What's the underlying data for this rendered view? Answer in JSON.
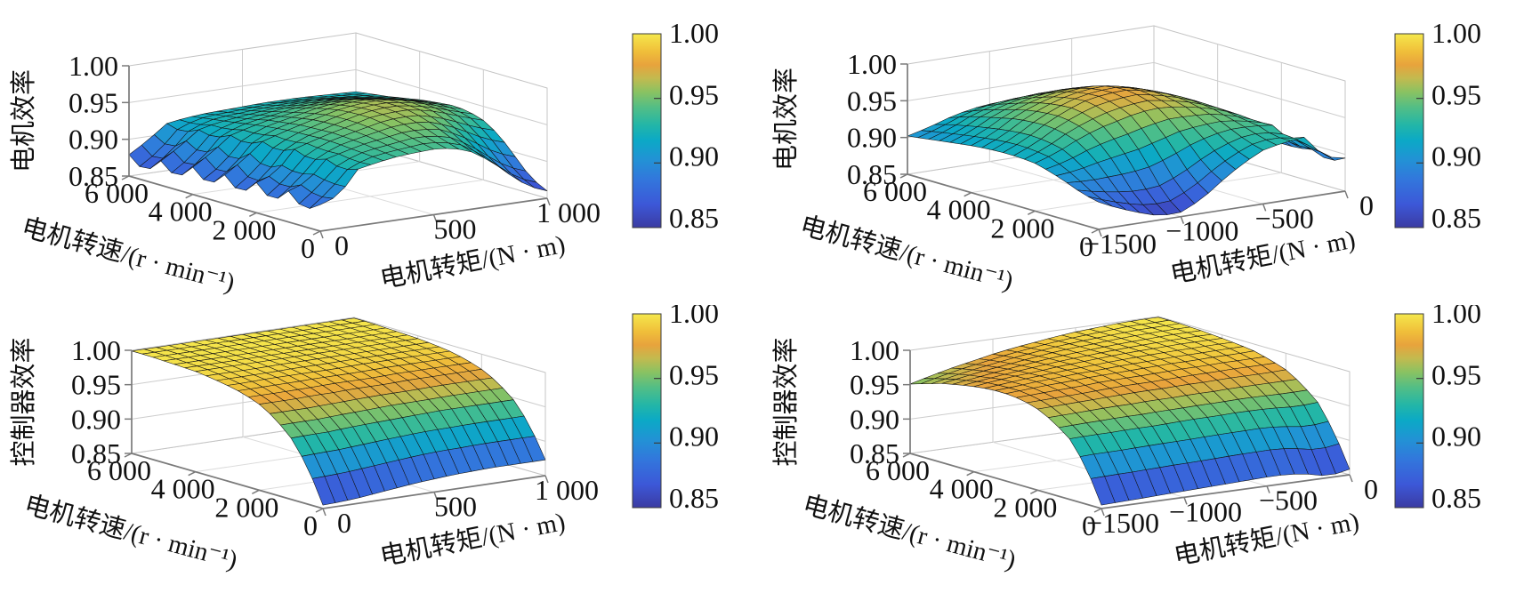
{
  "figure": {
    "background": "#ffffff",
    "description": "Four 3D surface plots: motor efficiency and controller efficiency versus motor speed and motor torque (drive and regeneration quadrants)"
  },
  "colormap": {
    "name": "parula-like",
    "stops": [
      [
        0.0,
        "#3b3ba2"
      ],
      [
        0.12,
        "#3c58d8"
      ],
      [
        0.25,
        "#3277dc"
      ],
      [
        0.35,
        "#2292d5"
      ],
      [
        0.45,
        "#0ba9c6"
      ],
      [
        0.53,
        "#23b6a7"
      ],
      [
        0.62,
        "#52be86"
      ],
      [
        0.7,
        "#8ac262"
      ],
      [
        0.77,
        "#c2ba4f"
      ],
      [
        0.84,
        "#e8a33c"
      ],
      [
        0.91,
        "#f0bf3a"
      ],
      [
        1.0,
        "#f5e84c"
      ]
    ]
  },
  "colorbar": {
    "tick_labels": [
      "1.00",
      "0.95",
      "0.90",
      "0.85"
    ],
    "range": [
      0.85,
      1.0
    ]
  },
  "chart_data": [
    {
      "type": "surface",
      "panel": "top-left",
      "zlabel": "电机效率",
      "ylabel": "电机转速/(r · min⁻¹)",
      "xlabel": "电机转矩/(N · m)",
      "xtick_labels": [
        "0",
        "500",
        "1 000"
      ],
      "ytick_labels": [
        "0",
        "2 000",
        "4 000",
        "6 000"
      ],
      "ztick_labels": [
        "0.85",
        "0.90",
        "0.95",
        "1.00"
      ],
      "colorbar_tick_labels": [
        "1.00",
        "0.95",
        "0.90",
        "0.85"
      ],
      "x_torque": [
        0,
        83,
        167,
        250,
        333,
        417,
        500,
        583,
        667,
        750,
        833,
        917,
        1000
      ],
      "y_speed": [
        0,
        500,
        1000,
        1500,
        2000,
        2500,
        3000,
        3500,
        4000,
        4500,
        5000,
        5500,
        6000
      ],
      "zlim": [
        0.85,
        1.0
      ],
      "z_grid": [
        [
          0.886,
          0.895,
          0.927,
          0.932,
          0.936,
          0.938,
          0.939,
          0.937,
          0.928,
          0.912,
          0.89,
          0.87,
          0.86
        ],
        [
          0.872,
          0.897,
          0.92,
          0.934,
          0.938,
          0.941,
          0.944,
          0.943,
          0.936,
          0.921,
          0.9,
          0.881,
          0.871
        ],
        [
          0.892,
          0.901,
          0.928,
          0.935,
          0.941,
          0.945,
          0.949,
          0.95,
          0.946,
          0.935,
          0.919,
          0.903,
          0.894
        ],
        [
          0.871,
          0.896,
          0.921,
          0.937,
          0.943,
          0.949,
          0.954,
          0.957,
          0.955,
          0.948,
          0.937,
          0.925,
          0.917
        ],
        [
          0.891,
          0.9,
          0.929,
          0.937,
          0.944,
          0.95,
          0.957,
          0.96,
          0.96,
          0.956,
          0.948,
          0.939,
          0.931
        ],
        [
          0.869,
          0.889,
          0.92,
          0.936,
          0.943,
          0.951,
          0.957,
          0.962,
          0.962,
          0.959,
          0.953,
          0.945,
          0.938
        ],
        [
          0.889,
          0.906,
          0.927,
          0.935,
          0.942,
          0.949,
          0.955,
          0.959,
          0.96,
          0.958,
          0.952,
          0.945,
          0.939
        ],
        [
          0.868,
          0.886,
          0.917,
          0.933,
          0.939,
          0.945,
          0.951,
          0.955,
          0.956,
          0.953,
          0.949,
          0.943,
          0.937
        ],
        [
          0.887,
          0.903,
          0.923,
          0.93,
          0.936,
          0.94,
          0.945,
          0.948,
          0.949,
          0.947,
          0.943,
          0.938,
          0.934
        ],
        [
          0.865,
          0.883,
          0.913,
          0.927,
          0.931,
          0.935,
          0.939,
          0.941,
          0.942,
          0.94,
          0.937,
          0.934,
          0.93
        ],
        [
          0.883,
          0.899,
          0.918,
          0.924,
          0.927,
          0.93,
          0.932,
          0.934,
          0.935,
          0.934,
          0.932,
          0.929,
          0.926
        ],
        [
          0.861,
          0.879,
          0.908,
          0.921,
          0.924,
          0.925,
          0.927,
          0.928,
          0.928,
          0.928,
          0.926,
          0.925,
          0.923
        ],
        [
          0.879,
          0.895,
          0.914,
          0.918,
          0.92,
          0.921,
          0.922,
          0.923,
          0.923,
          0.923,
          0.922,
          0.921,
          0.92
        ]
      ]
    },
    {
      "type": "surface",
      "panel": "top-right",
      "zlabel": "电机效率",
      "ylabel": "电机转速/(r · min⁻¹)",
      "xlabel": "电机转矩/(N · m)",
      "xtick_labels": [
        "−1500",
        "−1000",
        "−500",
        "0"
      ],
      "ytick_labels": [
        "0",
        "2 000",
        "4 000",
        "6 000"
      ],
      "ztick_labels": [
        "0.85",
        "0.90",
        "0.95",
        "1.00"
      ],
      "colorbar_tick_labels": [
        "1.00",
        "0.95",
        "0.90",
        "0.85"
      ],
      "x_torque": [
        -1500,
        -1375,
        -1250,
        -1125,
        -1000,
        -875,
        -750,
        -625,
        -500,
        -375,
        -250,
        -125,
        0
      ],
      "y_speed": [
        0,
        500,
        1000,
        1500,
        2000,
        2500,
        3000,
        3500,
        4000,
        4500,
        5000,
        5500,
        6000
      ],
      "zlim": [
        0.85,
        1.0
      ],
      "z_grid": [
        [
          0.887,
          0.874,
          0.864,
          0.855,
          0.856,
          0.869,
          0.89,
          0.909,
          0.923,
          0.929,
          0.932,
          0.901,
          0.895
        ],
        [
          0.892,
          0.883,
          0.876,
          0.871,
          0.873,
          0.885,
          0.903,
          0.919,
          0.929,
          0.933,
          0.924,
          0.913,
          0.884
        ],
        [
          0.901,
          0.899,
          0.9,
          0.901,
          0.905,
          0.914,
          0.926,
          0.935,
          0.939,
          0.939,
          0.936,
          0.906,
          0.894
        ],
        [
          0.909,
          0.914,
          0.923,
          0.93,
          0.935,
          0.942,
          0.948,
          0.949,
          0.949,
          0.944,
          0.935,
          0.911,
          0.89
        ],
        [
          0.915,
          0.924,
          0.937,
          0.948,
          0.955,
          0.962,
          0.964,
          0.962,
          0.956,
          0.949,
          0.937,
          0.912,
          0.89
        ],
        [
          0.917,
          0.928,
          0.944,
          0.957,
          0.966,
          0.971,
          0.973,
          0.968,
          0.961,
          0.951,
          0.938,
          0.912,
          0.89
        ],
        [
          0.917,
          0.929,
          0.946,
          0.96,
          0.97,
          0.975,
          0.976,
          0.971,
          0.962,
          0.952,
          0.938,
          0.912,
          0.889
        ],
        [
          0.916,
          0.928,
          0.945,
          0.959,
          0.968,
          0.974,
          0.975,
          0.97,
          0.961,
          0.951,
          0.937,
          0.91,
          0.888
        ],
        [
          0.914,
          0.925,
          0.942,
          0.955,
          0.963,
          0.969,
          0.969,
          0.965,
          0.957,
          0.948,
          0.934,
          0.908,
          0.887
        ],
        [
          0.911,
          0.922,
          0.937,
          0.949,
          0.956,
          0.961,
          0.961,
          0.958,
          0.951,
          0.943,
          0.931,
          0.906,
          0.884
        ],
        [
          0.908,
          0.918,
          0.932,
          0.942,
          0.948,
          0.951,
          0.952,
          0.949,
          0.943,
          0.937,
          0.926,
          0.902,
          0.882
        ],
        [
          0.905,
          0.914,
          0.926,
          0.935,
          0.939,
          0.942,
          0.942,
          0.94,
          0.936,
          0.931,
          0.922,
          0.899,
          0.879
        ],
        [
          0.902,
          0.909,
          0.918,
          0.925,
          0.928,
          0.929,
          0.93,
          0.928,
          0.925,
          0.922,
          0.917,
          0.896,
          0.877
        ]
      ]
    },
    {
      "type": "surface",
      "panel": "bottom-left",
      "zlabel": "控制器效率",
      "ylabel": "电机转速/(r · min⁻¹)",
      "xlabel": "电机转矩/(N · m)",
      "xtick_labels": [
        "0",
        "500",
        "1 000"
      ],
      "ytick_labels": [
        "0",
        "2 000",
        "4 000",
        "6 000"
      ],
      "ztick_labels": [
        "0.85",
        "0.90",
        "0.95",
        "1.00"
      ],
      "colorbar_tick_labels": [
        "1.00",
        "0.95",
        "0.90",
        "0.85"
      ],
      "x_torque": [
        0,
        83,
        167,
        250,
        333,
        417,
        500,
        583,
        667,
        750,
        833,
        917,
        1000
      ],
      "y_speed": [
        0,
        500,
        1000,
        1500,
        2000,
        2500,
        3000,
        3500,
        4000,
        4500,
        5000,
        5500,
        6000
      ],
      "zlim": [
        0.85,
        1.0
      ],
      "z_grid": [
        [
          0.855,
          0.856,
          0.858,
          0.861,
          0.864,
          0.867,
          0.869,
          0.871,
          0.872,
          0.873,
          0.873,
          0.873,
          0.873
        ],
        [
          0.906,
          0.907,
          0.908,
          0.91,
          0.912,
          0.914,
          0.916,
          0.917,
          0.917,
          0.918,
          0.918,
          0.918,
          0.918
        ],
        [
          0.939,
          0.94,
          0.94,
          0.942,
          0.943,
          0.944,
          0.945,
          0.946,
          0.947,
          0.947,
          0.947,
          0.947,
          0.947
        ],
        [
          0.961,
          0.961,
          0.961,
          0.962,
          0.963,
          0.964,
          0.965,
          0.965,
          0.965,
          0.966,
          0.966,
          0.966,
          0.966
        ],
        [
          0.975,
          0.975,
          0.975,
          0.976,
          0.976,
          0.977,
          0.977,
          0.977,
          0.978,
          0.978,
          0.978,
          0.978,
          0.978
        ],
        [
          0.984,
          0.984,
          0.984,
          0.984,
          0.985,
          0.985,
          0.985,
          0.985,
          0.986,
          0.986,
          0.986,
          0.986,
          0.986
        ],
        [
          0.989,
          0.989,
          0.99,
          0.99,
          0.99,
          0.99,
          0.99,
          0.991,
          0.991,
          0.991,
          0.991,
          0.991,
          0.991
        ],
        [
          0.993,
          0.993,
          0.993,
          0.993,
          0.994,
          0.994,
          0.994,
          0.994,
          0.994,
          0.994,
          0.994,
          0.994,
          0.994
        ],
        [
          0.996,
          0.996,
          0.996,
          0.996,
          0.996,
          0.996,
          0.996,
          0.996,
          0.996,
          0.996,
          0.996,
          0.996,
          0.996
        ],
        [
          0.997,
          0.997,
          0.997,
          0.997,
          0.997,
          0.997,
          0.997,
          0.997,
          0.997,
          0.997,
          0.997,
          0.997,
          0.997
        ],
        [
          0.998,
          0.998,
          0.998,
          0.998,
          0.998,
          0.998,
          0.998,
          0.998,
          0.998,
          0.998,
          0.998,
          0.998,
          0.998
        ],
        [
          0.999,
          0.999,
          0.999,
          0.999,
          0.999,
          0.999,
          0.999,
          0.999,
          0.999,
          0.999,
          0.999,
          0.999,
          0.999
        ],
        [
          0.999,
          0.999,
          0.999,
          0.999,
          0.999,
          0.999,
          0.999,
          0.999,
          0.999,
          0.999,
          0.999,
          0.999,
          0.999
        ]
      ]
    },
    {
      "type": "surface",
      "panel": "bottom-right",
      "zlabel": "控制器效率",
      "ylabel": "电机转速/(r · min⁻¹)",
      "xlabel": "电机转矩/(N · m)",
      "xtick_labels": [
        "−1500",
        "−1000",
        "−500",
        "0"
      ],
      "ytick_labels": [
        "0",
        "2 000",
        "4 000",
        "6 000"
      ],
      "ztick_labels": [
        "0.85",
        "0.90",
        "0.95",
        "1.00"
      ],
      "colorbar_tick_labels": [
        "1.00",
        "0.95",
        "0.90",
        "0.85"
      ],
      "x_torque": [
        -1500,
        -1375,
        -1250,
        -1125,
        -1000,
        -875,
        -750,
        -625,
        -500,
        -375,
        -250,
        -125,
        0
      ],
      "y_speed": [
        0,
        500,
        1000,
        1500,
        2000,
        2500,
        3000,
        3500,
        4000,
        4500,
        5000,
        5500,
        6000
      ],
      "zlim": [
        0.85,
        1.0
      ],
      "z_grid": [
        [
          0.855,
          0.856,
          0.857,
          0.858,
          0.859,
          0.86,
          0.861,
          0.862,
          0.863,
          0.863,
          0.859,
          0.852,
          0.858
        ],
        [
          0.906,
          0.907,
          0.907,
          0.908,
          0.909,
          0.909,
          0.91,
          0.911,
          0.911,
          0.912,
          0.908,
          0.903,
          0.907
        ],
        [
          0.938,
          0.939,
          0.939,
          0.94,
          0.94,
          0.941,
          0.942,
          0.942,
          0.943,
          0.943,
          0.942,
          0.94,
          0.942
        ],
        [
          0.956,
          0.957,
          0.958,
          0.959,
          0.959,
          0.96,
          0.96,
          0.961,
          0.961,
          0.962,
          0.962,
          0.962,
          0.962
        ],
        [
          0.968,
          0.969,
          0.97,
          0.971,
          0.972,
          0.973,
          0.973,
          0.974,
          0.974,
          0.975,
          0.975,
          0.975,
          0.976
        ],
        [
          0.975,
          0.976,
          0.977,
          0.978,
          0.98,
          0.981,
          0.981,
          0.982,
          0.983,
          0.983,
          0.984,
          0.984,
          0.984
        ],
        [
          0.977,
          0.979,
          0.981,
          0.982,
          0.984,
          0.985,
          0.986,
          0.987,
          0.988,
          0.988,
          0.989,
          0.989,
          0.99
        ],
        [
          0.977,
          0.979,
          0.982,
          0.984,
          0.986,
          0.987,
          0.989,
          0.99,
          0.991,
          0.992,
          0.992,
          0.993,
          0.993
        ],
        [
          0.974,
          0.978,
          0.981,
          0.983,
          0.986,
          0.988,
          0.99,
          0.992,
          0.993,
          0.994,
          0.995,
          0.995,
          0.995
        ],
        [
          0.97,
          0.974,
          0.978,
          0.982,
          0.985,
          0.988,
          0.99,
          0.992,
          0.994,
          0.995,
          0.996,
          0.997,
          0.997
        ],
        [
          0.965,
          0.97,
          0.975,
          0.979,
          0.983,
          0.987,
          0.99,
          0.992,
          0.994,
          0.996,
          0.997,
          0.998,
          0.998
        ],
        [
          0.958,
          0.965,
          0.971,
          0.976,
          0.981,
          0.985,
          0.989,
          0.992,
          0.994,
          0.996,
          0.998,
          0.998,
          0.999
        ],
        [
          0.951,
          0.959,
          0.966,
          0.972,
          0.978,
          0.983,
          0.987,
          0.991,
          0.994,
          0.996,
          0.998,
          0.999,
          0.999
        ]
      ]
    }
  ]
}
